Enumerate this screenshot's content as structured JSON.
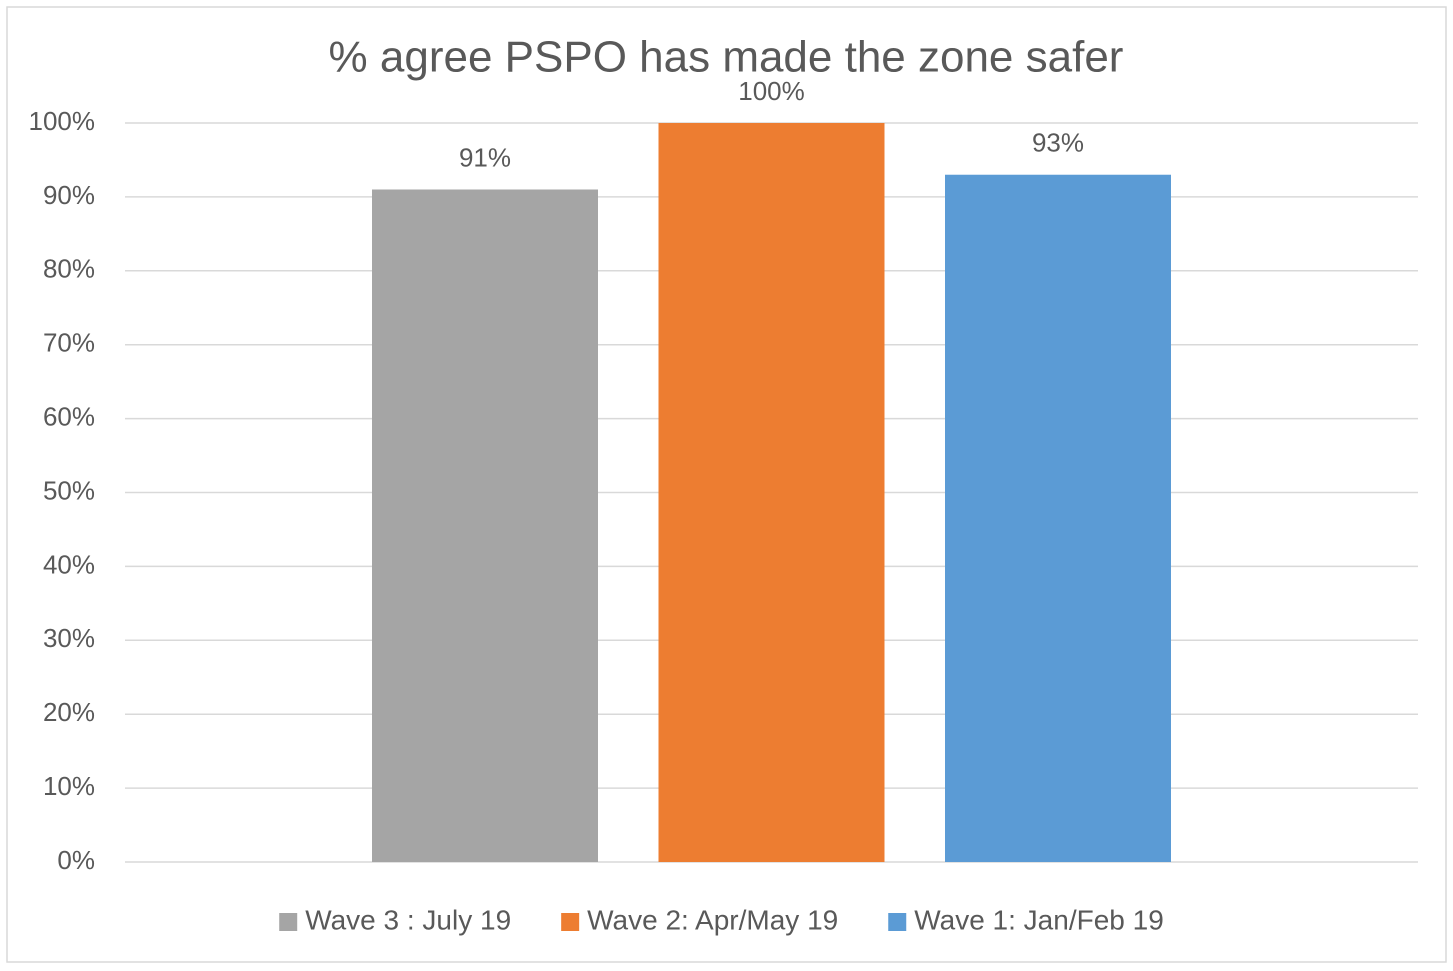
{
  "chart_data": {
    "type": "bar",
    "title": "% agree PSPO has made the zone safer",
    "categories": [
      null
    ],
    "series": [
      {
        "name": "Wave 3 : July 19",
        "color": "#a5a5a5",
        "values": [
          91
        ],
        "value_labels": [
          "91%"
        ]
      },
      {
        "name": "Wave 2: Apr/May 19",
        "color": "#ed7d31",
        "values": [
          100
        ],
        "value_labels": [
          "100%"
        ]
      },
      {
        "name": "Wave 1: Jan/Feb 19",
        "color": "#5b9bd5",
        "values": [
          93
        ],
        "value_labels": [
          "93%"
        ]
      }
    ],
    "ylim": [
      0,
      100
    ],
    "yticks": [
      {
        "value": 0,
        "label": "0%"
      },
      {
        "value": 10,
        "label": "10%"
      },
      {
        "value": 20,
        "label": "20%"
      },
      {
        "value": 30,
        "label": "30%"
      },
      {
        "value": 40,
        "label": "40%"
      },
      {
        "value": 50,
        "label": "50%"
      },
      {
        "value": 60,
        "label": "60%"
      },
      {
        "value": 70,
        "label": "70%"
      },
      {
        "value": 80,
        "label": "80%"
      },
      {
        "value": 90,
        "label": "90%"
      },
      {
        "value": 100,
        "label": "100%"
      }
    ],
    "grid": true,
    "legend": "bottom"
  }
}
